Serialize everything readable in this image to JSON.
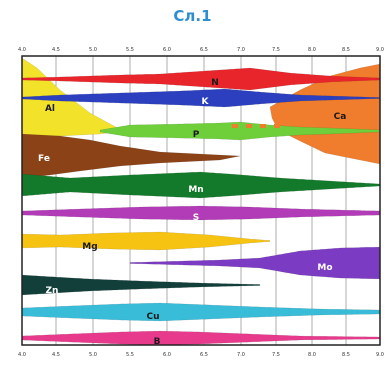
{
  "caption": {
    "text": "Сл.1",
    "color": "#2e8fd0"
  },
  "colors": {
    "frame": "#222222",
    "grid": "#9a9a9a"
  },
  "chart_data": {
    "type": "area",
    "x_ticks": [
      "4.0",
      "4.5",
      "5.0",
      "5.5",
      "6.0",
      "6.5",
      "7.0",
      "7.5",
      "8.0",
      "8.5",
      "9.0"
    ],
    "x_ticks_bottom": [
      "4.0",
      "4.5",
      "5.0",
      "5.5",
      "6.0",
      "6.5",
      "7.0",
      "7.5",
      "8.0",
      "8.5",
      "9.0"
    ],
    "series": [
      {
        "name": "N",
        "color": "#e8252b",
        "text_color": "#1a1a1a"
      },
      {
        "name": "K",
        "color": "#2b3fbf",
        "text_color": "#ffffff"
      },
      {
        "name": "P",
        "color": "#6fcf3a",
        "text_color": "#1a1a1a"
      },
      {
        "name": "Al",
        "color": "#f2e32a",
        "text_color": "#1a1a1a"
      },
      {
        "name": "Ca",
        "color": "#f07d2d",
        "text_color": "#1a1a1a"
      },
      {
        "name": "Fe",
        "color": "#8b4216",
        "text_color": "#ffffff"
      },
      {
        "name": "Mn",
        "color": "#137a2b",
        "text_color": "#ffffff"
      },
      {
        "name": "S",
        "color": "#b23bb7",
        "text_color": "#ffffff"
      },
      {
        "name": "Mg",
        "color": "#f6c313",
        "text_color": "#1a1a1a"
      },
      {
        "name": "Mo",
        "color": "#7b3bc2",
        "text_color": "#ffffff"
      },
      {
        "name": "Zn",
        "color": "#123f3a",
        "text_color": "#ffffff"
      },
      {
        "name": "Cu",
        "color": "#38bcd8",
        "text_color": "#1a1a1a"
      },
      {
        "name": "B",
        "color": "#e83a8d",
        "text_color": "#1a1a1a"
      }
    ]
  }
}
